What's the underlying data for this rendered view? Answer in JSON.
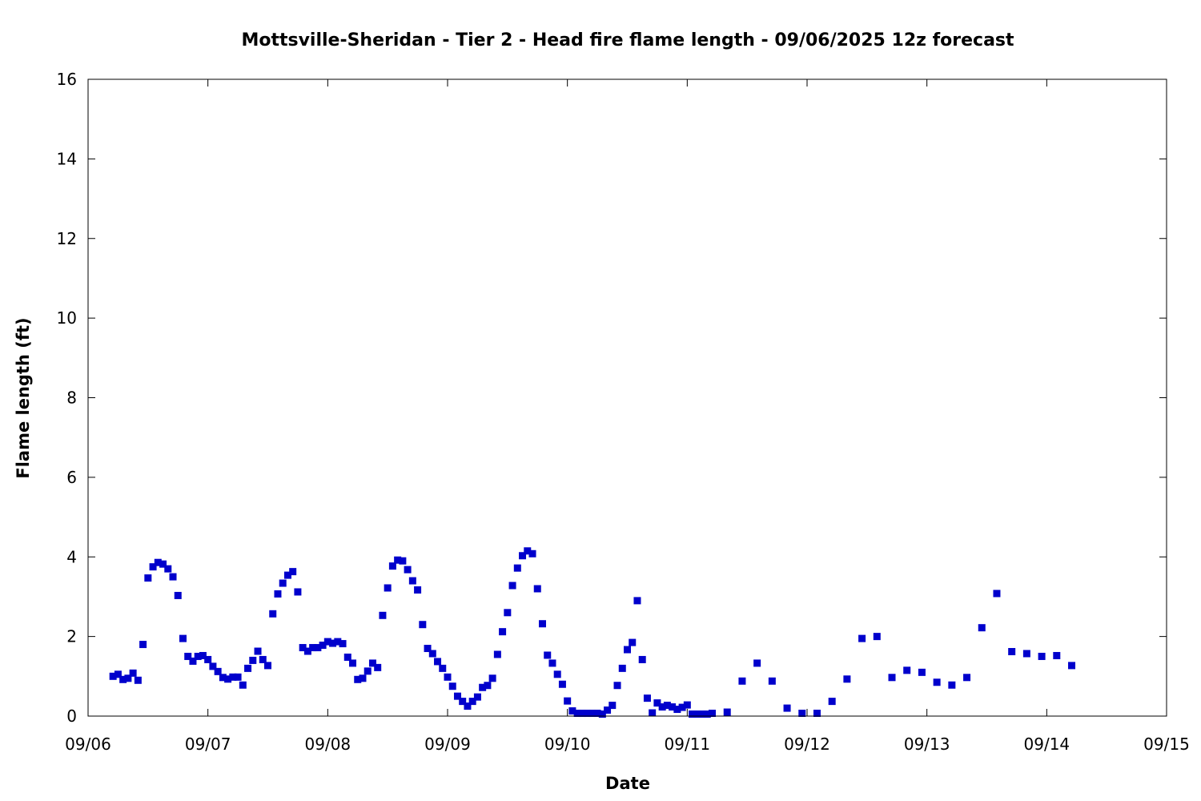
{
  "chart_data": {
    "type": "scatter",
    "title": "Mottsville-Sheridan - Tier 2 - Head fire flame length - 09/06/2025 12z forecast",
    "xlabel": "Date",
    "ylabel": "Flame length (ft)",
    "xlim": [
      "2025-09-06T00:00",
      "2025-09-15T00:00"
    ],
    "ylim": [
      0,
      16
    ],
    "x_ticks": [
      "09/06",
      "09/07",
      "09/08",
      "09/09",
      "09/10",
      "09/11",
      "09/12",
      "09/13",
      "09/14",
      "09/15"
    ],
    "y_ticks": [
      "0",
      "2",
      "4",
      "6",
      "8",
      "10",
      "12",
      "14",
      "16"
    ],
    "grid": false,
    "marker_color": "#0000cc",
    "series": [
      {
        "points": [
          [
            "2025-09-06T05:00",
            1.0
          ],
          [
            "2025-09-06T06:00",
            1.05
          ],
          [
            "2025-09-06T07:00",
            0.92
          ],
          [
            "2025-09-06T08:00",
            0.95
          ],
          [
            "2025-09-06T09:00",
            1.08
          ],
          [
            "2025-09-06T10:00",
            0.9
          ],
          [
            "2025-09-06T11:00",
            1.8
          ],
          [
            "2025-09-06T12:00",
            3.47
          ],
          [
            "2025-09-06T13:00",
            3.75
          ],
          [
            "2025-09-06T14:00",
            3.86
          ],
          [
            "2025-09-06T15:00",
            3.82
          ],
          [
            "2025-09-06T16:00",
            3.7
          ],
          [
            "2025-09-06T17:00",
            3.5
          ],
          [
            "2025-09-06T18:00",
            3.03
          ],
          [
            "2025-09-06T19:00",
            1.95
          ],
          [
            "2025-09-06T20:00",
            1.5
          ],
          [
            "2025-09-06T21:00",
            1.38
          ],
          [
            "2025-09-06T22:00",
            1.5
          ],
          [
            "2025-09-06T23:00",
            1.52
          ],
          [
            "2025-09-07T00:00",
            1.42
          ],
          [
            "2025-09-07T01:00",
            1.25
          ],
          [
            "2025-09-07T02:00",
            1.12
          ],
          [
            "2025-09-07T03:00",
            0.97
          ],
          [
            "2025-09-07T04:00",
            0.93
          ],
          [
            "2025-09-07T05:00",
            0.98
          ],
          [
            "2025-09-07T06:00",
            0.98
          ],
          [
            "2025-09-07T07:00",
            0.78
          ],
          [
            "2025-09-07T08:00",
            1.2
          ],
          [
            "2025-09-07T09:00",
            1.4
          ],
          [
            "2025-09-07T10:00",
            1.63
          ],
          [
            "2025-09-07T11:00",
            1.42
          ],
          [
            "2025-09-07T12:00",
            1.27
          ],
          [
            "2025-09-07T13:00",
            2.57
          ],
          [
            "2025-09-07T14:00",
            3.07
          ],
          [
            "2025-09-07T15:00",
            3.34
          ],
          [
            "2025-09-07T16:00",
            3.54
          ],
          [
            "2025-09-07T17:00",
            3.63
          ],
          [
            "2025-09-07T18:00",
            3.12
          ],
          [
            "2025-09-07T19:00",
            1.72
          ],
          [
            "2025-09-07T20:00",
            1.63
          ],
          [
            "2025-09-07T21:00",
            1.72
          ],
          [
            "2025-09-07T22:00",
            1.72
          ],
          [
            "2025-09-07T23:00",
            1.78
          ],
          [
            "2025-09-08T00:00",
            1.87
          ],
          [
            "2025-09-08T01:00",
            1.83
          ],
          [
            "2025-09-08T02:00",
            1.87
          ],
          [
            "2025-09-08T03:00",
            1.82
          ],
          [
            "2025-09-08T04:00",
            1.48
          ],
          [
            "2025-09-08T05:00",
            1.33
          ],
          [
            "2025-09-08T06:00",
            0.92
          ],
          [
            "2025-09-08T07:00",
            0.95
          ],
          [
            "2025-09-08T08:00",
            1.13
          ],
          [
            "2025-09-08T09:00",
            1.33
          ],
          [
            "2025-09-08T10:00",
            1.22
          ],
          [
            "2025-09-08T11:00",
            2.53
          ],
          [
            "2025-09-08T12:00",
            3.22
          ],
          [
            "2025-09-08T13:00",
            3.77
          ],
          [
            "2025-09-08T14:00",
            3.92
          ],
          [
            "2025-09-08T15:00",
            3.9
          ],
          [
            "2025-09-08T16:00",
            3.68
          ],
          [
            "2025-09-08T17:00",
            3.4
          ],
          [
            "2025-09-08T18:00",
            3.17
          ],
          [
            "2025-09-08T19:00",
            2.3
          ],
          [
            "2025-09-08T20:00",
            1.7
          ],
          [
            "2025-09-08T21:00",
            1.57
          ],
          [
            "2025-09-08T22:00",
            1.37
          ],
          [
            "2025-09-08T23:00",
            1.2
          ],
          [
            "2025-09-09T00:00",
            0.98
          ],
          [
            "2025-09-09T01:00",
            0.75
          ],
          [
            "2025-09-09T02:00",
            0.5
          ],
          [
            "2025-09-09T03:00",
            0.37
          ],
          [
            "2025-09-09T04:00",
            0.25
          ],
          [
            "2025-09-09T05:00",
            0.37
          ],
          [
            "2025-09-09T06:00",
            0.48
          ],
          [
            "2025-09-09T07:00",
            0.72
          ],
          [
            "2025-09-09T08:00",
            0.77
          ],
          [
            "2025-09-09T09:00",
            0.95
          ],
          [
            "2025-09-09T10:00",
            1.55
          ],
          [
            "2025-09-09T11:00",
            2.12
          ],
          [
            "2025-09-09T12:00",
            2.6
          ],
          [
            "2025-09-09T13:00",
            3.28
          ],
          [
            "2025-09-09T14:00",
            3.72
          ],
          [
            "2025-09-09T15:00",
            4.03
          ],
          [
            "2025-09-09T16:00",
            4.15
          ],
          [
            "2025-09-09T17:00",
            4.08
          ],
          [
            "2025-09-09T18:00",
            3.2
          ],
          [
            "2025-09-09T19:00",
            2.32
          ],
          [
            "2025-09-09T20:00",
            1.53
          ],
          [
            "2025-09-09T21:00",
            1.33
          ],
          [
            "2025-09-09T22:00",
            1.05
          ],
          [
            "2025-09-09T23:00",
            0.8
          ],
          [
            "2025-09-10T00:00",
            0.38
          ],
          [
            "2025-09-10T01:00",
            0.13
          ],
          [
            "2025-09-10T02:00",
            0.07
          ],
          [
            "2025-09-10T03:00",
            0.07
          ],
          [
            "2025-09-10T04:00",
            0.07
          ],
          [
            "2025-09-10T05:00",
            0.07
          ],
          [
            "2025-09-10T06:00",
            0.07
          ],
          [
            "2025-09-10T07:00",
            0.05
          ],
          [
            "2025-09-10T08:00",
            0.15
          ],
          [
            "2025-09-10T09:00",
            0.27
          ],
          [
            "2025-09-10T10:00",
            0.77
          ],
          [
            "2025-09-10T11:00",
            1.2
          ],
          [
            "2025-09-10T12:00",
            1.67
          ],
          [
            "2025-09-10T13:00",
            1.85
          ],
          [
            "2025-09-10T14:00",
            2.9
          ],
          [
            "2025-09-10T15:00",
            1.42
          ],
          [
            "2025-09-10T16:00",
            0.45
          ],
          [
            "2025-09-10T17:00",
            0.08
          ],
          [
            "2025-09-10T18:00",
            0.33
          ],
          [
            "2025-09-10T19:00",
            0.23
          ],
          [
            "2025-09-10T20:00",
            0.27
          ],
          [
            "2025-09-10T21:00",
            0.23
          ],
          [
            "2025-09-10T22:00",
            0.17
          ],
          [
            "2025-09-10T23:00",
            0.22
          ],
          [
            "2025-09-11T00:00",
            0.28
          ],
          [
            "2025-09-11T01:00",
            0.05
          ],
          [
            "2025-09-11T02:00",
            0.05
          ],
          [
            "2025-09-11T03:00",
            0.05
          ],
          [
            "2025-09-11T04:00",
            0.05
          ],
          [
            "2025-09-11T05:00",
            0.07
          ],
          [
            "2025-09-11T08:00",
            0.1
          ],
          [
            "2025-09-11T11:00",
            0.88
          ],
          [
            "2025-09-11T14:00",
            1.33
          ],
          [
            "2025-09-11T17:00",
            0.88
          ],
          [
            "2025-09-11T20:00",
            0.2
          ],
          [
            "2025-09-11T23:00",
            0.07
          ],
          [
            "2025-09-12T02:00",
            0.07
          ],
          [
            "2025-09-12T05:00",
            0.37
          ],
          [
            "2025-09-12T08:00",
            0.93
          ],
          [
            "2025-09-12T11:00",
            1.95
          ],
          [
            "2025-09-12T14:00",
            2.0
          ],
          [
            "2025-09-12T17:00",
            0.97
          ],
          [
            "2025-09-12T20:00",
            1.15
          ],
          [
            "2025-09-12T23:00",
            1.1
          ],
          [
            "2025-09-13T02:00",
            0.85
          ],
          [
            "2025-09-13T05:00",
            0.78
          ],
          [
            "2025-09-13T08:00",
            0.97
          ],
          [
            "2025-09-13T11:00",
            2.22
          ],
          [
            "2025-09-13T14:00",
            3.08
          ],
          [
            "2025-09-13T17:00",
            1.62
          ],
          [
            "2025-09-13T20:00",
            1.57
          ],
          [
            "2025-09-13T23:00",
            1.5
          ],
          [
            "2025-09-14T02:00",
            1.52
          ],
          [
            "2025-09-14T05:00",
            1.27
          ]
        ]
      }
    ]
  }
}
